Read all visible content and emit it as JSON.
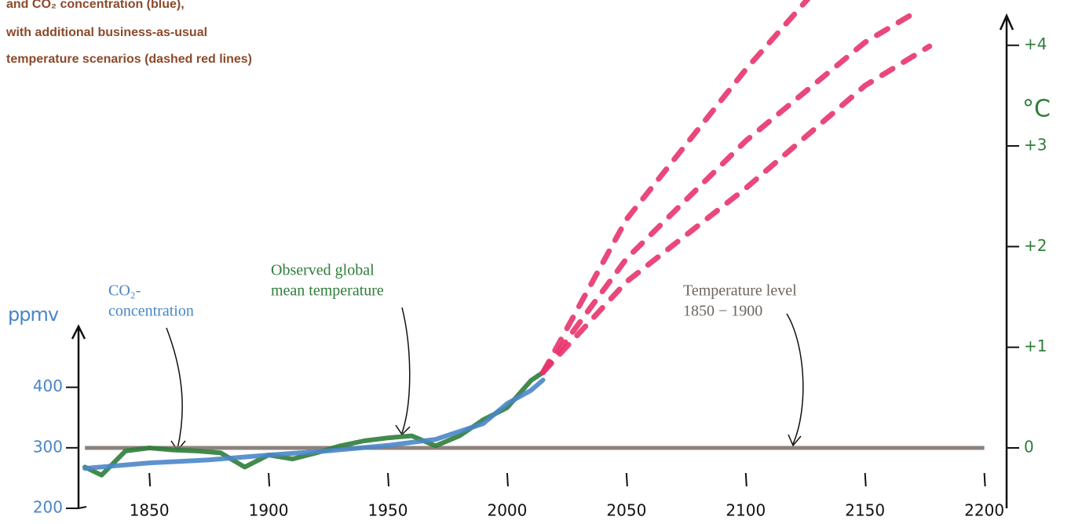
{
  "chart_data": {
    "type": "line",
    "title": [
      "and CO₂ concentration (blue),",
      "with additional business-as-usual",
      "temperature scenarios (dashed red lines)"
    ],
    "ylabel": "ppmv",
    "y2label": "°C",
    "xlim": [
      1820,
      2210
    ],
    "xticks": [
      1850,
      1900,
      1950,
      2000,
      2050,
      2100,
      2150,
      2200
    ],
    "ylim": [
      200,
      1040
    ],
    "yticks": [
      200,
      300,
      400
    ],
    "y2lim": [
      -0.6,
      4.45
    ],
    "y2ticks": [
      0,
      {
        "value": 1,
        "label": "+1"
      },
      {
        "value": 2,
        "label": "+2"
      },
      {
        "value": 3,
        "label": "+3"
      },
      {
        "value": 4,
        "label": "+4"
      }
    ],
    "baseline": {
      "value": 0,
      "axis": "y2",
      "color": "#7a6e66"
    },
    "series": [
      {
        "color": "#2e7d3a",
        "axis": "y2",
        "x": [
          1823,
          1830,
          1840,
          1850,
          1860,
          1870,
          1880,
          1890,
          1900,
          1910,
          1920,
          1930,
          1940,
          1950,
          1960,
          1970,
          1980,
          1990,
          2000,
          2010,
          2015
        ],
        "values": [
          -0.19,
          -0.27,
          -0.03,
          0.0,
          -0.02,
          -0.03,
          -0.05,
          -0.19,
          -0.07,
          -0.11,
          -0.05,
          0.02,
          0.07,
          0.1,
          0.12,
          0.02,
          0.12,
          0.28,
          0.4,
          0.67,
          0.75
        ]
      },
      {
        "color": "#4a86c8",
        "axis": "y",
        "x": [
          1823,
          1850,
          1875,
          1900,
          1925,
          1950,
          1970,
          1990,
          2000,
          2010,
          2015
        ],
        "values": [
          266,
          275,
          280,
          288,
          295,
          304,
          314,
          340,
          373,
          395,
          412
        ]
      },
      {
        "color": "#e8336d",
        "axis": "y2",
        "dashed": true,
        "x": [
          2015,
          2050,
          2100,
          2126
        ],
        "values": [
          0.75,
          2.27,
          3.76,
          4.46
        ]
      },
      {
        "color": "#e8336d",
        "axis": "y2",
        "dashed": true,
        "x": [
          2015,
          2050,
          2100,
          2150,
          2172
        ],
        "values": [
          0.75,
          1.88,
          3.05,
          4.03,
          4.34
        ]
      },
      {
        "color": "#e8336d",
        "axis": "y2",
        "dashed": true,
        "x": [
          2015,
          2050,
          2100,
          2150,
          2177
        ],
        "values": [
          0.75,
          1.65,
          2.58,
          3.6,
          3.99
        ]
      }
    ],
    "annotations": [
      {
        "lines": [
          "CO₂-",
          "concentration"
        ],
        "color": "#4a86c8"
      },
      {
        "lines": [
          "Observed global",
          "mean temperature"
        ],
        "color": "#2e7d3a"
      },
      {
        "lines": [
          "Temperature level",
          "1850 − 1900"
        ],
        "color": "#6e6660"
      }
    ]
  }
}
